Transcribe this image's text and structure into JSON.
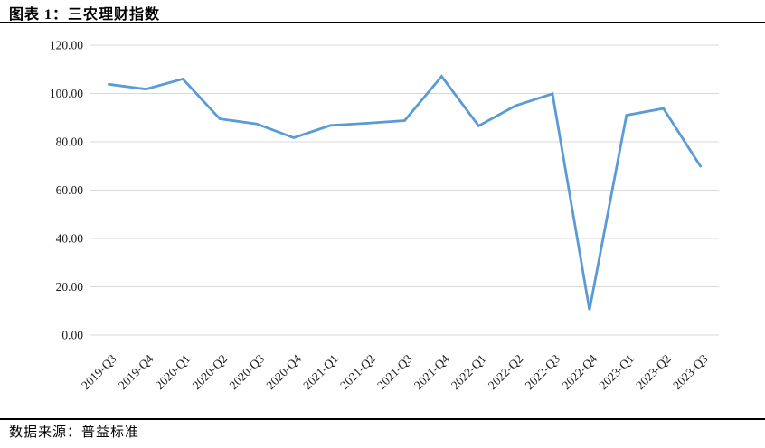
{
  "page": {
    "title": "图表 1：三农理财指数",
    "source": "数据来源：普益标准"
  },
  "chart_data": {
    "type": "line",
    "title": "三农理财指数",
    "xlabel": "",
    "ylabel": "",
    "legend": "none",
    "grid": "horizontal",
    "ylim": [
      0,
      120
    ],
    "ytick_values": [
      0,
      20,
      40,
      60,
      80,
      100,
      120
    ],
    "ytick_labels": [
      "0.00",
      "20.00",
      "40.00",
      "60.00",
      "80.00",
      "100.00",
      "120.00"
    ],
    "categories": [
      "2019-Q3",
      "2019-Q4",
      "2020-Q1",
      "2020-Q2",
      "2020-Q3",
      "2020-Q4",
      "2021-Q1",
      "2021-Q2",
      "2021-Q3",
      "2021-Q4",
      "2022-Q1",
      "2022-Q2",
      "2022-Q3",
      "2022-Q4",
      "2023-Q1",
      "2023-Q2",
      "2023-Q3"
    ],
    "series": [
      {
        "name": "三农理财指数",
        "values": [
          103.8,
          101.8,
          106.0,
          89.5,
          87.4,
          81.7,
          86.8,
          87.7,
          88.8,
          107.1,
          86.6,
          94.9,
          99.9,
          10.4,
          91.0,
          93.8,
          69.9
        ]
      }
    ],
    "colors": {
      "line": "#5B9BD5",
      "grid": "#D9D9D9",
      "text": "#1a1a1a"
    }
  }
}
